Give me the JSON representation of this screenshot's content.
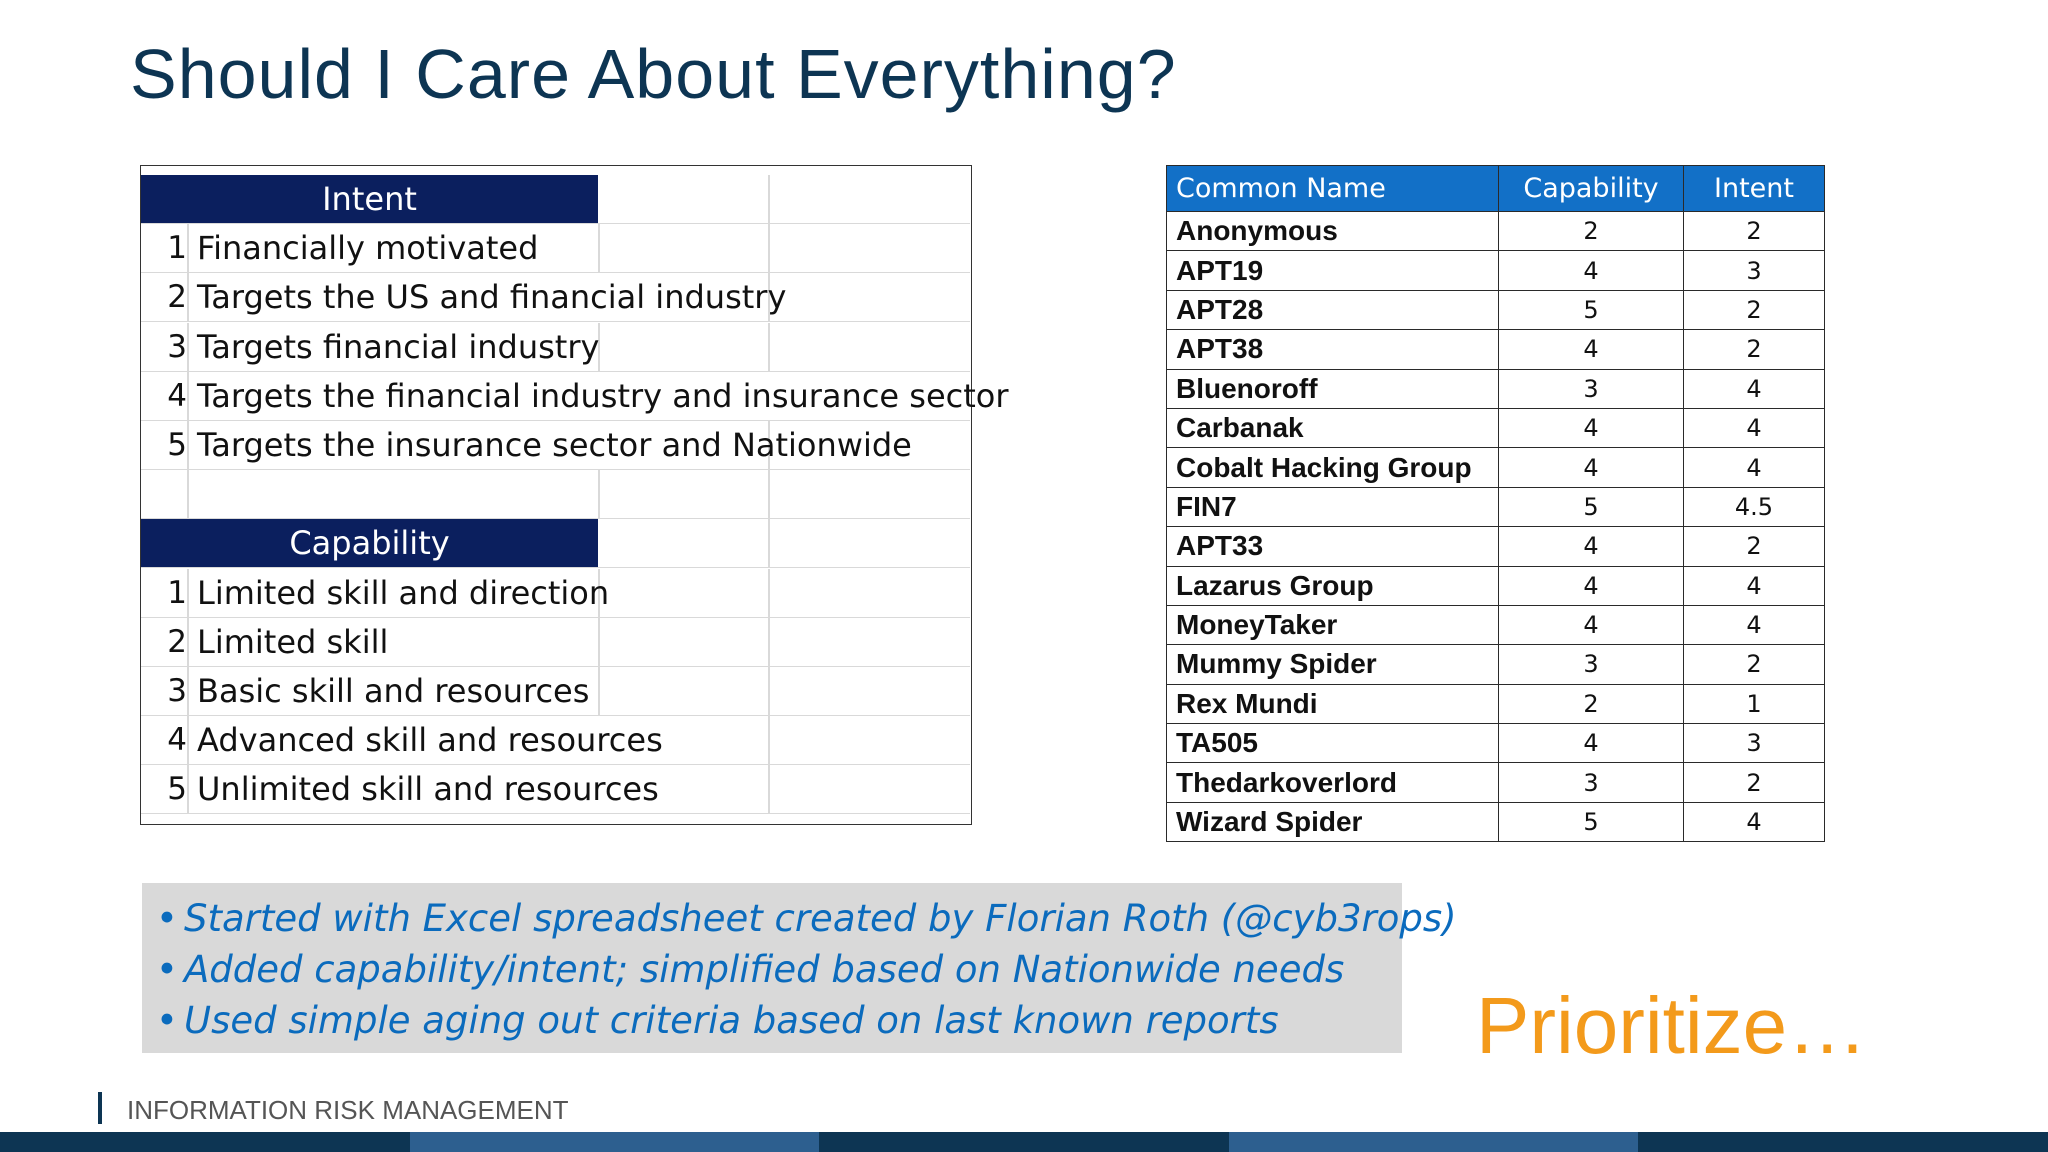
{
  "title": "Should I Care About Everything?",
  "intent_table": {
    "header": "Intent",
    "rows": [
      {
        "num": "1",
        "text": "Financially motivated"
      },
      {
        "num": "2",
        "text": "Targets the US and financial industry"
      },
      {
        "num": "3",
        "text": "Targets financial industry"
      },
      {
        "num": "4",
        "text": "Targets the financial industry and insurance sector"
      },
      {
        "num": "5",
        "text": "Targets the insurance sector and Nationwide"
      }
    ]
  },
  "capability_table": {
    "header": "Capability",
    "rows": [
      {
        "num": "1",
        "text": "Limited skill and direction"
      },
      {
        "num": "2",
        "text": "Limited skill"
      },
      {
        "num": "3",
        "text": "Basic skill and resources"
      },
      {
        "num": "4",
        "text": "Advanced skill and resources"
      },
      {
        "num": "5",
        "text": "Unlimited skill and resources"
      }
    ]
  },
  "actor_table": {
    "columns": [
      "Common Name",
      "Capability",
      "Intent"
    ],
    "rows": [
      [
        "Anonymous",
        "2",
        "2"
      ],
      [
        "APT19",
        "4",
        "3"
      ],
      [
        "APT28",
        "5",
        "2"
      ],
      [
        "APT38",
        "4",
        "2"
      ],
      [
        "Bluenoroff",
        "3",
        "4"
      ],
      [
        "Carbanak",
        "4",
        "4"
      ],
      [
        "Cobalt Hacking Group",
        "4",
        "4"
      ],
      [
        "FIN7",
        "5",
        "4.5"
      ],
      [
        "APT33",
        "4",
        "2"
      ],
      [
        "Lazarus Group",
        "4",
        "4"
      ],
      [
        "MoneyTaker",
        "4",
        "4"
      ],
      [
        "Mummy Spider",
        "3",
        "2"
      ],
      [
        "Rex Mundi",
        "2",
        "1"
      ],
      [
        "TA505",
        "4",
        "3"
      ],
      [
        "Thedarkoverlord",
        "3",
        "2"
      ],
      [
        "Wizard Spider",
        "5",
        "4"
      ]
    ]
  },
  "notes": [
    "Started with Excel spreadsheet created by Florian Roth (@cyb3rops)",
    "Added capability/intent; simplified based on Nationwide needs",
    "Used simple aging out criteria based on last known reports"
  ],
  "callout": "Prioritize…",
  "footer": "INFORMATION RISK MANAGEMENT",
  "colors": {
    "title": "#0d3553",
    "sheet_header": "#0b1f5e",
    "table_header": "#1270c7",
    "notes_text": "#0b6bbd",
    "callout": "#f39a1b",
    "strip": [
      "#0d3553",
      "#2d5f8f",
      "#0d3553",
      "#2d5f8f",
      "#0d3553"
    ]
  }
}
